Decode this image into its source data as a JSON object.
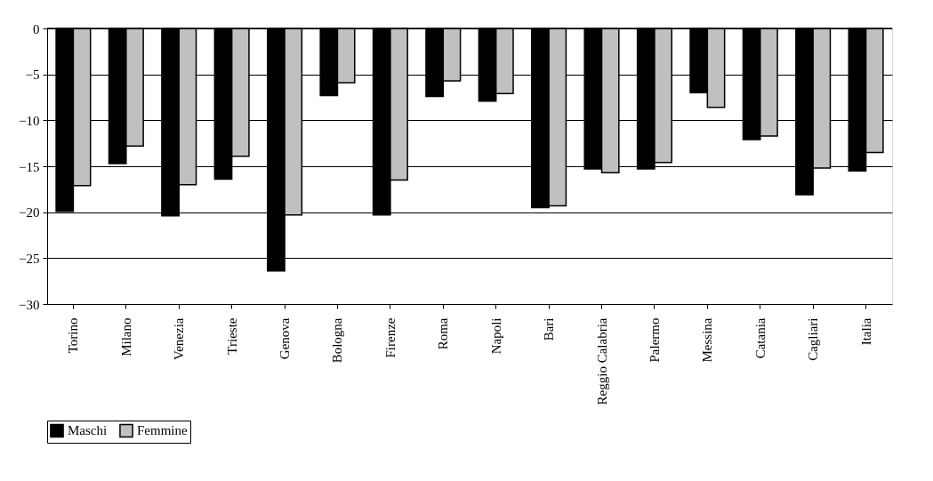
{
  "chart_data": {
    "type": "bar",
    "categories": [
      "Torino",
      "Milano",
      "Venezia",
      "Trieste",
      "Genova",
      "Bologna",
      "Firenze",
      "Roma",
      "Napoli",
      "Bari",
      "Reggio Calabria",
      "Palermo",
      "Messina",
      "Catania",
      "Cagliari",
      "Italia"
    ],
    "series": [
      {
        "name": "Maschi",
        "color": "#000000",
        "values": [
          -19.9,
          -14.7,
          -20.4,
          -16.4,
          -26.4,
          -7.3,
          -20.3,
          -7.4,
          -7.9,
          -19.5,
          -15.3,
          -15.3,
          -7.0,
          -12.1,
          -18.1,
          -15.5
        ]
      },
      {
        "name": "Femmine",
        "color": "#c0c0c0",
        "values": [
          -17.1,
          -12.8,
          -17.0,
          -13.9,
          -20.3,
          -5.9,
          -16.5,
          -5.7,
          -7.1,
          -19.3,
          -15.7,
          -14.6,
          -8.6,
          -11.7,
          -15.2,
          -13.5
        ]
      }
    ],
    "ylim": [
      -30,
      0
    ],
    "yticks": [
      -30,
      -25,
      -20,
      -15,
      -10,
      -5,
      0
    ],
    "grid": "y",
    "legend": "bottom"
  }
}
